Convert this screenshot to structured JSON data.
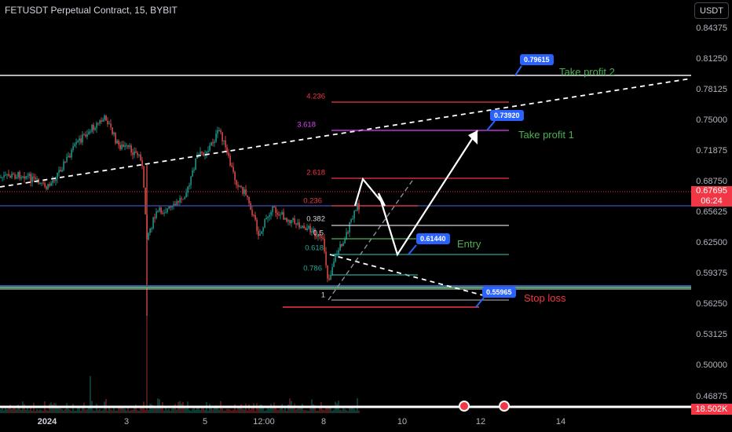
{
  "header": {
    "title": "FETUSDT Perpetual Contract, 15, BYBIT",
    "currency_button": "USDT"
  },
  "price_axis": {
    "labels": [
      "0.84375",
      "0.81250",
      "0.78125",
      "0.75000",
      "0.71875",
      "0.68750",
      "0.65625",
      "0.62500",
      "0.59375",
      "0.56250",
      "0.53125",
      "0.50000",
      "0.46875"
    ],
    "last_price": "0.67695",
    "countdown": "06:24",
    "volume": "18.502K"
  },
  "time_axis": {
    "labels": [
      "2024",
      "3",
      "5",
      "12:00",
      "8",
      "10",
      "12",
      "14"
    ]
  },
  "fib_levels": [
    {
      "label": "4.236",
      "color": "#f23645"
    },
    {
      "label": "3.618",
      "color": "#e040fb"
    },
    {
      "label": "2.618",
      "color": "#f23645"
    },
    {
      "label": "0.236",
      "color": "#f23645"
    },
    {
      "label": "0.382",
      "color": "#d1d4dc"
    },
    {
      "label": "0.5",
      "color": "#d1d4dc"
    },
    {
      "label": "0.618",
      "color": "#26a69a"
    },
    {
      "label": "0.786",
      "color": "#26a69a"
    },
    {
      "label": "1",
      "color": "#d1d4dc"
    }
  ],
  "callouts": {
    "take_profit_2": "0.79615",
    "take_profit_1": "0.73920",
    "entry": "0.61440",
    "stop_loss": "0.55965"
  },
  "notes": {
    "take_profit_2": "Take profit 2",
    "take_profit_1": "Take profit 1",
    "entry": "Entry",
    "stop_loss": "Stop loss"
  },
  "colors": {
    "up": "#26a69a",
    "down": "#ef5350",
    "accent": "#2962ff",
    "note_green": "#4caf50",
    "note_red": "#f23645"
  },
  "icons": [
    "us-flag-event-icon",
    "us-flag-event-icon"
  ]
}
